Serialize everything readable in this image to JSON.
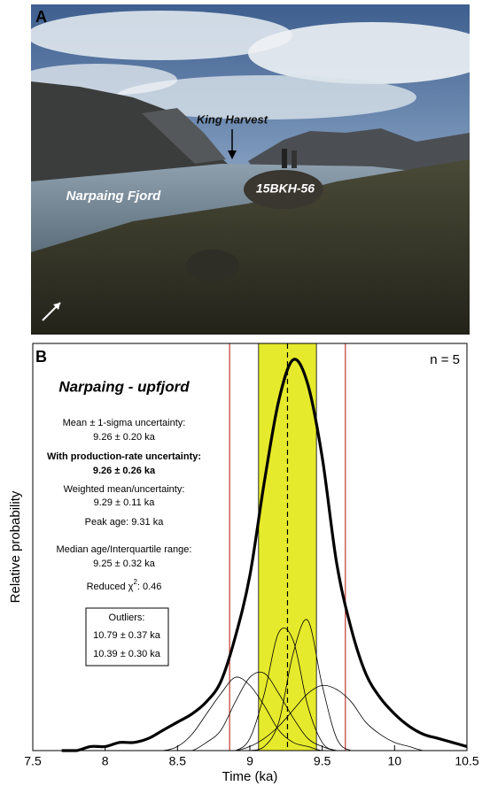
{
  "panel_a": {
    "label": "A",
    "king_harvest": "King Harvest",
    "fjord": "Narpaing Fjord",
    "boulder": "15BKH-56"
  },
  "chart_data": {
    "type": "line",
    "panel_label": "B",
    "title": "Narpaing - upfjord",
    "n_label": "n = 5",
    "xlabel": "Time (ka)",
    "ylabel": "Relative probability",
    "xlim": [
      7.5,
      10.5
    ],
    "xticks": [
      7.5,
      8,
      8.5,
      9,
      9.5,
      10,
      10.5
    ],
    "ylim": [
      0,
      1
    ],
    "x": [
      7.7,
      7.8,
      7.9,
      8.0,
      8.1,
      8.2,
      8.3,
      8.4,
      8.5,
      8.6,
      8.7,
      8.8,
      8.9,
      9.0,
      9.1,
      9.2,
      9.3,
      9.4,
      9.5,
      9.6,
      9.7,
      9.8,
      9.9,
      10.0,
      10.1,
      10.2,
      10.3,
      10.4,
      10.5
    ],
    "series": [
      {
        "color": "#000000",
        "width": 3.2,
        "values": [
          0,
          0,
          0.01,
          0.01,
          0.02,
          0.02,
          0.03,
          0.05,
          0.07,
          0.09,
          0.12,
          0.17,
          0.28,
          0.43,
          0.66,
          0.86,
          0.96,
          0.9,
          0.72,
          0.46,
          0.3,
          0.19,
          0.13,
          0.09,
          0.06,
          0.04,
          0.03,
          0.02,
          0.01
        ]
      },
      {
        "color": "#000000",
        "width": 0.8,
        "values": [
          0,
          0,
          0,
          0,
          0,
          0,
          0,
          0,
          0.01,
          0.04,
          0.09,
          0.14,
          0.18,
          0.16,
          0.11,
          0.05,
          0.02,
          0.01,
          0,
          0,
          0,
          0,
          0,
          0,
          0,
          0,
          0,
          0,
          0
        ]
      },
      {
        "color": "#000000",
        "width": 0.8,
        "values": [
          0,
          0,
          0,
          0,
          0,
          0,
          0,
          0,
          0,
          0,
          0.02,
          0.05,
          0.12,
          0.18,
          0.19,
          0.14,
          0.08,
          0.03,
          0.01,
          0,
          0,
          0,
          0,
          0,
          0,
          0,
          0,
          0,
          0
        ]
      },
      {
        "color": "#000000",
        "width": 0.8,
        "values": [
          0,
          0,
          0,
          0,
          0,
          0,
          0,
          0,
          0,
          0,
          0,
          0,
          0,
          0.03,
          0.14,
          0.29,
          0.27,
          0.11,
          0.02,
          0,
          0,
          0,
          0,
          0,
          0,
          0,
          0,
          0,
          0
        ]
      },
      {
        "color": "#000000",
        "width": 0.8,
        "values": [
          0,
          0,
          0,
          0,
          0,
          0,
          0,
          0,
          0,
          0,
          0,
          0,
          0,
          0,
          0.01,
          0.07,
          0.24,
          0.32,
          0.16,
          0.03,
          0,
          0,
          0,
          0,
          0,
          0,
          0,
          0,
          0
        ]
      },
      {
        "color": "#000000",
        "width": 0.8,
        "values": [
          0,
          0,
          0,
          0,
          0,
          0,
          0,
          0,
          0,
          0,
          0,
          0,
          0,
          0.01,
          0.03,
          0.06,
          0.1,
          0.14,
          0.16,
          0.15,
          0.12,
          0.07,
          0.04,
          0.02,
          0.01,
          0,
          0,
          0,
          0
        ]
      }
    ],
    "band": {
      "range": [
        9.06,
        9.46
      ],
      "color": "#e6ea2c"
    },
    "mean_line": 9.26,
    "limit_lines": {
      "values": [
        8.86,
        9.66
      ],
      "color": "#c0392b"
    },
    "stats": [
      {
        "text": "Mean ± 1-sigma uncertainty:",
        "bold": false
      },
      {
        "text": "9.26 ± 0.20 ka",
        "bold": false
      },
      {
        "text": "With production-rate uncertainty:",
        "bold": true
      },
      {
        "text": "9.26 ± 0.26 ka",
        "bold": true
      },
      {
        "text": "Weighted mean/uncertainty:",
        "bold": false
      },
      {
        "text": "9.29 ± 0.11 ka",
        "bold": false
      },
      {
        "text": "Peak age: 9.31 ka",
        "bold": false
      },
      {
        "text": "Median age/Interquartile range:",
        "bold": false
      },
      {
        "text": "9.25 ± 0.32 ka",
        "bold": false
      }
    ],
    "reduced_chi2": {
      "prefix": "Reduced χ",
      "superscript": "2",
      "suffix": ": 0.46"
    },
    "outliers": {
      "title": "Outliers:",
      "values": [
        "10.79 ± 0.37 ka",
        "10.39 ± 0.30 ka"
      ]
    }
  }
}
